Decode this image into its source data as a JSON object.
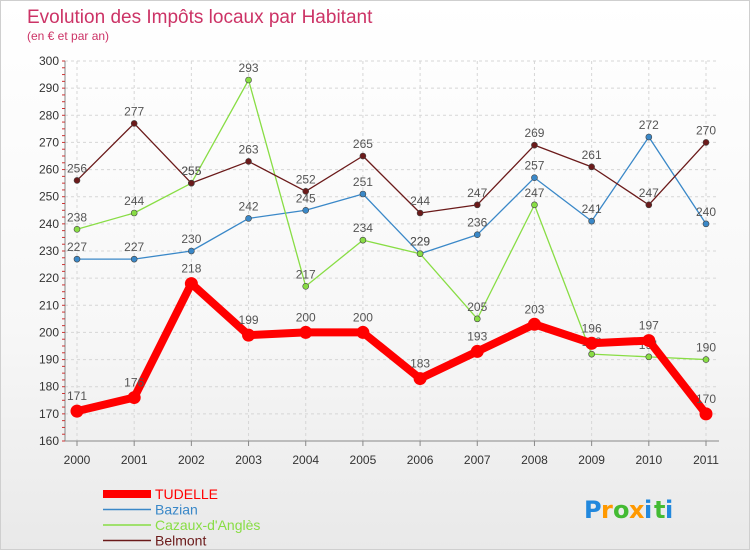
{
  "chart_data": {
    "type": "line",
    "title": "Evolution des Impôts locaux par Habitant",
    "subtitle": "(en € et par an)",
    "xlabel": "",
    "ylabel": "",
    "ylim": [
      160,
      300
    ],
    "y_ticks": [
      160,
      170,
      180,
      190,
      200,
      210,
      220,
      230,
      240,
      250,
      260,
      270,
      280,
      290,
      300
    ],
    "categories": [
      "2000",
      "2001",
      "2002",
      "2003",
      "2004",
      "2005",
      "2006",
      "2007",
      "2008",
      "2009",
      "2010",
      "2011"
    ],
    "grid": true,
    "legend_position": "bottom-left",
    "series": [
      {
        "name": "TUDELLE",
        "color": "#ff0000",
        "values": [
          171,
          176,
          218,
          199,
          200,
          200,
          183,
          193,
          203,
          196,
          197,
          170
        ]
      },
      {
        "name": "Bazian",
        "color": "#3a88c8",
        "values": [
          227,
          227,
          230,
          242,
          245,
          251,
          229,
          236,
          257,
          241,
          272,
          240
        ]
      },
      {
        "name": "Cazaux-d'Anglès",
        "color": "#88dd44",
        "values": [
          238,
          244,
          255,
          293,
          217,
          234,
          229,
          205,
          247,
          192,
          191,
          190
        ]
      },
      {
        "name": "Belmont",
        "color": "#6b1a1a",
        "values": [
          256,
          277,
          255,
          263,
          252,
          265,
          244,
          247,
          269,
          261,
          247,
          270
        ]
      }
    ]
  },
  "brand": {
    "letters": [
      "P",
      "r",
      "o",
      "x",
      "i",
      "t",
      "i"
    ],
    "colors": [
      "#2288dd",
      "#ff9900",
      "#44bb33",
      "#ff9900",
      "#2288dd",
      "#44bb33",
      "#2288dd"
    ]
  }
}
